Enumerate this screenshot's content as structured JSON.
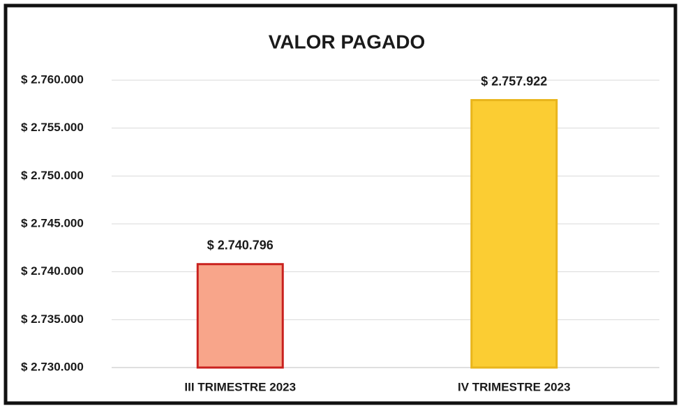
{
  "chart_data": {
    "type": "bar",
    "title": "VALOR PAGADO",
    "categories": [
      "III TRIMESTRE 2023",
      "IV TRIMESTRE 2023"
    ],
    "values": [
      2740796,
      2757922
    ],
    "value_labels": [
      "$ 2.740.796",
      "$ 2.757.922"
    ],
    "colors": [
      "#f8a58a",
      "#fbcd33"
    ],
    "border_colors": [
      "#c9211e",
      "#e9b51c"
    ],
    "ylim": [
      2730000,
      2760000
    ],
    "yticks": [
      {
        "value": 2730000,
        "label": "$ 2.730.000"
      },
      {
        "value": 2735000,
        "label": "$ 2.735.000"
      },
      {
        "value": 2740000,
        "label": "$ 2.740.000"
      },
      {
        "value": 2745000,
        "label": "$ 2.745.000"
      },
      {
        "value": 2750000,
        "label": "$ 2.750.000"
      },
      {
        "value": 2755000,
        "label": "$ 2.755.000"
      },
      {
        "value": 2760000,
        "label": "$ 2.760.000"
      }
    ],
    "grid": true
  }
}
